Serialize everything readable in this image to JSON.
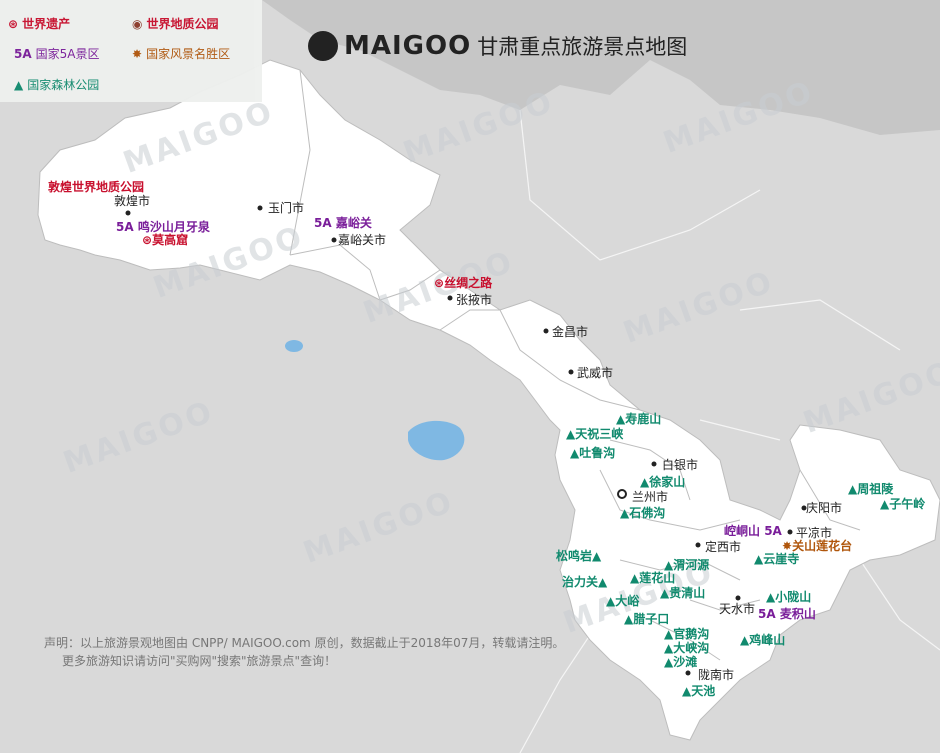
{
  "title": {
    "logo": "MAIGOO",
    "text": "甘肃重点旅游景点地图"
  },
  "legend": {
    "world_heritage": "世界遗产",
    "geopark": "世界地质公园",
    "fiveA": "国家5A景区",
    "scenic": "国家风景名胜区",
    "forest": "国家森林公园",
    "fiveA_mark": "5A"
  },
  "cities": [
    {
      "name": "敦煌市"
    },
    {
      "name": "玉门市"
    },
    {
      "name": "嘉峪关市"
    },
    {
      "name": "张掖市"
    },
    {
      "name": "金昌市"
    },
    {
      "name": "武威市"
    },
    {
      "name": "白银市"
    },
    {
      "name": "兰州市"
    },
    {
      "name": "定西市"
    },
    {
      "name": "平凉市"
    },
    {
      "name": "庆阳市"
    },
    {
      "name": "天水市"
    },
    {
      "name": "陇南市"
    }
  ],
  "sites": {
    "dunhuang_geopark": "敦煌世界地质公园",
    "mingsha": "鸣沙山月牙泉",
    "mogao": "莫高窟",
    "jiayuguan": "嘉峪关",
    "silkroad": "丝绸之路",
    "shoulu": "寿鹿山",
    "tianzhu": "天祝三峡",
    "tulugou": "吐鲁沟",
    "xujia": "徐家山",
    "shifo": "石佛沟",
    "songming": "松鸣岩",
    "zhili": "治力关",
    "weihe": "渭河源",
    "lianhuashan": "莲花山",
    "guiqing": "贵清山",
    "dayu": "大峪",
    "lazikou": "腊子口",
    "guane": "官鹅沟",
    "daxia": "大峡沟",
    "shatan": "沙滩",
    "tianchi": "天池",
    "kongtong": "崆峒山",
    "tianshan": "关山莲花台",
    "yunya": "云崖寺",
    "xiaolong": "小陇山",
    "maiji": "麦积山",
    "jifeng": "鸡峰山",
    "zhouzu": "周祖陵",
    "ziwuling": "子午岭"
  },
  "notes": {
    "line1": "声明：以上旅游景观地图由 CNPP/ MAIGOO.com 原创，数据截止于2018年07月，转载请注明。",
    "line2": "更多旅游知识请访问\"买购网\"搜索\"旅游景点\"查询！"
  },
  "colors": {
    "gansu": "#ffffff",
    "outside": "#d9d9d9",
    "north": "#c6c6c6",
    "lake": "#7fb8e3",
    "forest": "#118a6e",
    "fiveA": "#7a1e9a",
    "heritage": "#c8102e",
    "scenic": "#b0560c"
  }
}
